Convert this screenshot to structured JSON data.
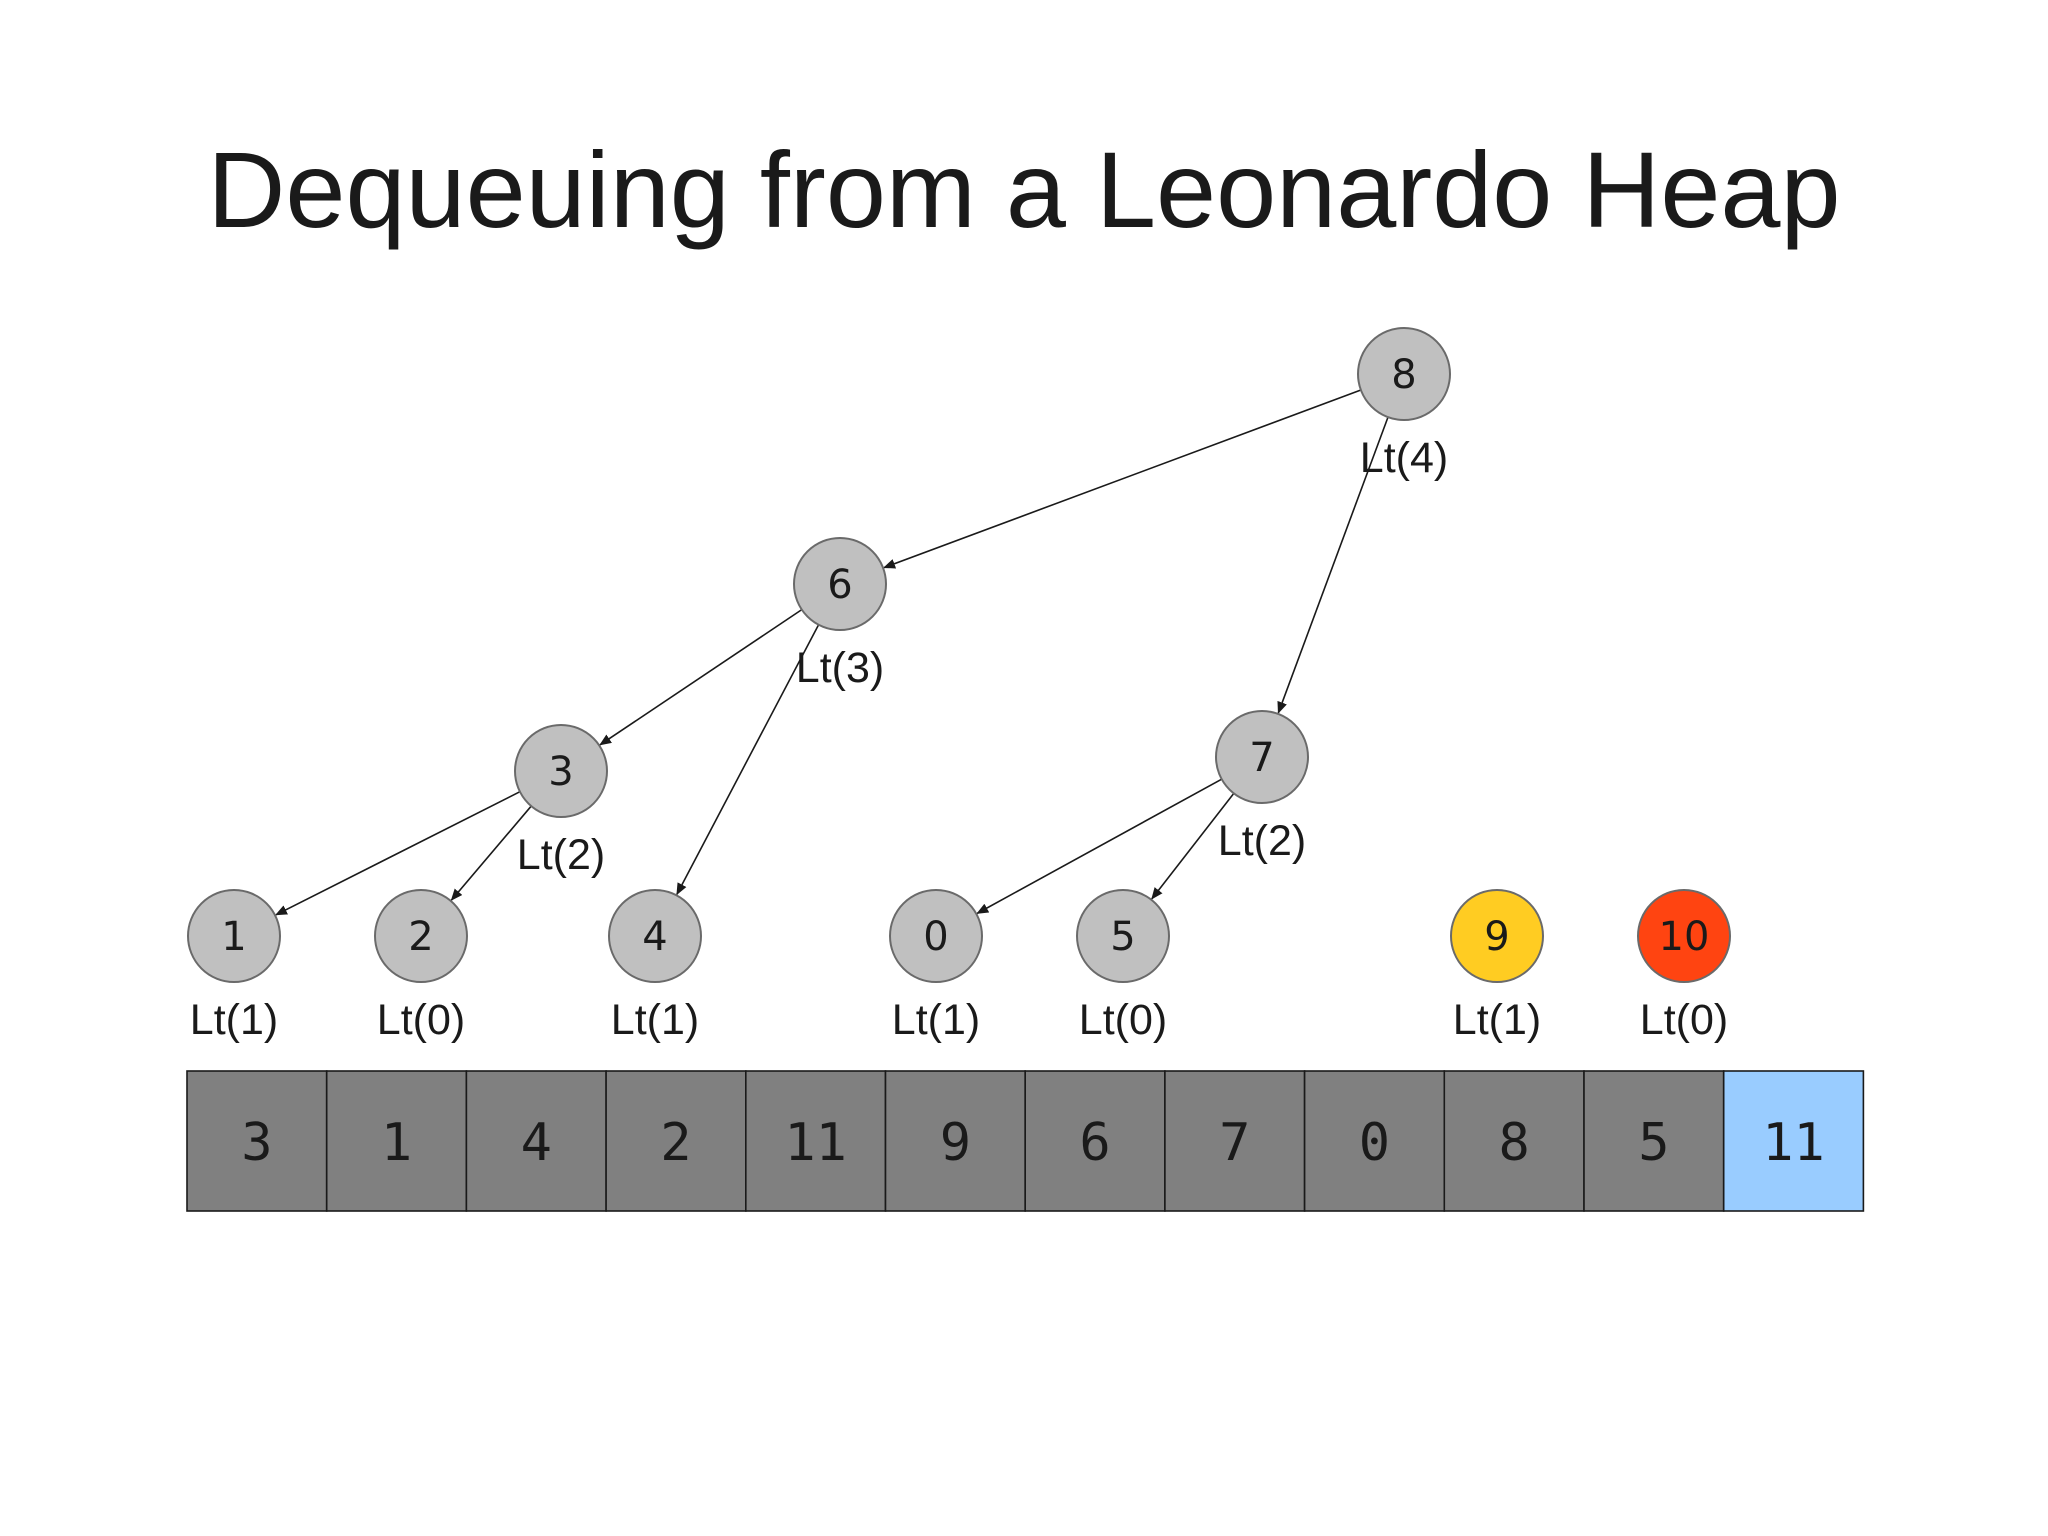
{
  "title": "Dequeuing from a Leonardo Heap",
  "colors": {
    "node_fill": "#c0c0c0",
    "node_stroke": "#6a6a6a",
    "highlight_yellow": "#ffcc22",
    "highlight_red": "#ff4411",
    "cell_fill": "#808080",
    "cell_highlight": "#99ccff",
    "cell_stroke": "#1a1a1a",
    "edge": "#1a1a1a"
  },
  "nodes": [
    {
      "id": "n8",
      "value": "8",
      "label": "Lt(4)",
      "color": "node_fill"
    },
    {
      "id": "n6",
      "value": "6",
      "label": "Lt(3)",
      "color": "node_fill"
    },
    {
      "id": "n7",
      "value": "7",
      "label": "Lt(2)",
      "color": "node_fill"
    },
    {
      "id": "n3",
      "value": "3",
      "label": "Lt(2)",
      "color": "node_fill"
    },
    {
      "id": "n1",
      "value": "1",
      "label": "Lt(1)",
      "color": "node_fill"
    },
    {
      "id": "n2",
      "value": "2",
      "label": "Lt(0)",
      "color": "node_fill"
    },
    {
      "id": "n4",
      "value": "4",
      "label": "Lt(1)",
      "color": "node_fill"
    },
    {
      "id": "n0",
      "value": "0",
      "label": "Lt(1)",
      "color": "node_fill"
    },
    {
      "id": "n5",
      "value": "5",
      "label": "Lt(0)",
      "color": "node_fill"
    },
    {
      "id": "n9",
      "value": "9",
      "label": "Lt(1)",
      "color": "highlight_yellow"
    },
    {
      "id": "n10",
      "value": "10",
      "label": "Lt(0)",
      "color": "highlight_red"
    }
  ],
  "edges": [
    {
      "from": "n8",
      "to": "n6"
    },
    {
      "from": "n8",
      "to": "n7"
    },
    {
      "from": "n6",
      "to": "n3"
    },
    {
      "from": "n6",
      "to": "n4"
    },
    {
      "from": "n3",
      "to": "n1"
    },
    {
      "from": "n3",
      "to": "n2"
    },
    {
      "from": "n7",
      "to": "n0"
    },
    {
      "from": "n7",
      "to": "n5"
    }
  ],
  "array": [
    {
      "value": "3",
      "highlight": false
    },
    {
      "value": "1",
      "highlight": false
    },
    {
      "value": "4",
      "highlight": false
    },
    {
      "value": "2",
      "highlight": false
    },
    {
      "value": "11",
      "highlight": false
    },
    {
      "value": "9",
      "highlight": false
    },
    {
      "value": "6",
      "highlight": false
    },
    {
      "value": "7",
      "highlight": false
    },
    {
      "value": "0",
      "highlight": false
    },
    {
      "value": "8",
      "highlight": false
    },
    {
      "value": "5",
      "highlight": false
    },
    {
      "value": "11",
      "highlight": true
    }
  ]
}
